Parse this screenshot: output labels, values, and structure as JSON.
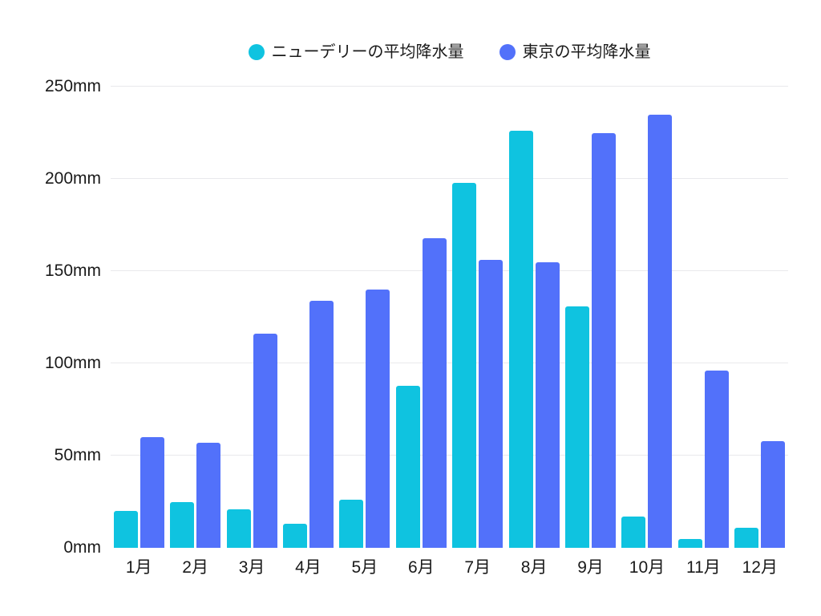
{
  "legend": {
    "items": [
      {
        "label": "ニューデリーの平均降水量",
        "color": "#0fc3e0"
      },
      {
        "label": "東京の平均降水量",
        "color": "#5271fa"
      }
    ]
  },
  "chart_data": {
    "type": "bar",
    "title": "",
    "categories": [
      "1月",
      "2月",
      "3月",
      "4月",
      "5月",
      "6月",
      "7月",
      "8月",
      "9月",
      "10月",
      "11月",
      "12月"
    ],
    "series": [
      {
        "name": "ニューデリーの平均降水量",
        "color": "#0fc3e0",
        "values": [
          20,
          25,
          21,
          13,
          26,
          88,
          198,
          226,
          131,
          17,
          5,
          11
        ]
      },
      {
        "name": "東京の平均降水量",
        "color": "#5271fa",
        "values": [
          60,
          57,
          116,
          134,
          140,
          168,
          156,
          155,
          225,
          235,
          96,
          58
        ]
      }
    ],
    "unit": "mm",
    "yticks": [
      0,
      50,
      100,
      150,
      200,
      250
    ],
    "ytick_labels": [
      "0mm",
      "50mm",
      "100mm",
      "150mm",
      "200mm",
      "250mm"
    ],
    "ylim": [
      0,
      250
    ],
    "grid": true,
    "gridline_color": "#e9e9ec",
    "legend_position": "top",
    "background": "#ffffff",
    "text_color": "#1a1a1a"
  }
}
